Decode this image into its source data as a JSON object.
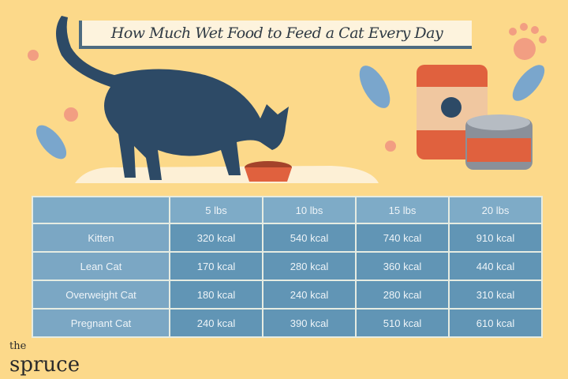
{
  "title": "How Much Wet Food to Feed a Cat Every Day",
  "colors": {
    "background": "#fcd98a",
    "header_cell": "#7eabc7",
    "label_cell": "#7ba7c4",
    "value_cell": "#6195b5",
    "cat": "#2d4a66",
    "accent": "#e0613e"
  },
  "chart_data": {
    "type": "table",
    "columns": [
      "",
      "5 lbs",
      "10 lbs",
      "15 lbs",
      "20 lbs"
    ],
    "rows": [
      {
        "label": "Kitten",
        "values": [
          "320 kcal",
          "540 kcal",
          "740 kcal",
          "910 kcal"
        ]
      },
      {
        "label": "Lean Cat",
        "values": [
          "170 kcal",
          "280 kcal",
          "360 kcal",
          "440 kcal"
        ]
      },
      {
        "label": "Overweight Cat",
        "values": [
          "180 kcal",
          "240 kcal",
          "280 kcal",
          "310 kcal"
        ]
      },
      {
        "label": "Pregnant Cat",
        "values": [
          "240 kcal",
          "390 kcal",
          "510 kcal",
          "610 kcal"
        ]
      }
    ]
  },
  "logo": {
    "line1": "the",
    "line2": "spruce"
  },
  "illustration_icons": [
    "cat-icon",
    "food-bowl-icon",
    "cat-food-can-icon",
    "fish-icon",
    "paw-print-icon",
    "sparkle-icon"
  ]
}
